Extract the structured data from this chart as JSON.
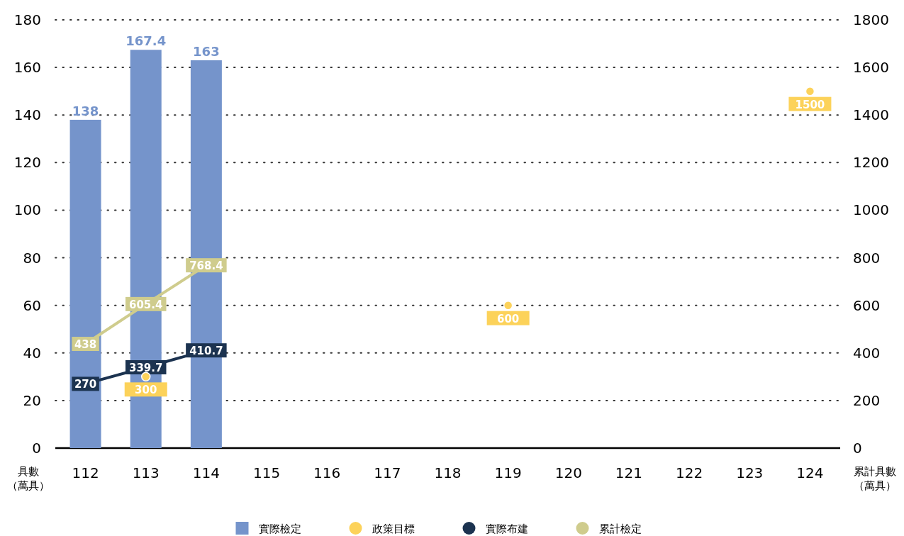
{
  "chart_data": {
    "type": "bar",
    "categories": [
      "112",
      "113",
      "114",
      "115",
      "116",
      "117",
      "118",
      "119",
      "120",
      "121",
      "122",
      "123",
      "124"
    ],
    "ylabel": "具數（萬具）",
    "y2label": "累計具數（萬具）",
    "ylim": [
      0,
      180
    ],
    "yticks": [
      0,
      20,
      40,
      60,
      80,
      100,
      120,
      140,
      160,
      180
    ],
    "y2lim": [
      0,
      1800
    ],
    "y2ticks": [
      0,
      200,
      400,
      600,
      800,
      1000,
      1200,
      1400,
      1600,
      1800
    ],
    "grid": "y",
    "legend": "bottom",
    "data_labels": true,
    "series": [
      {
        "name": "實際檢定",
        "color": "#7594cb",
        "values": [
          138,
          167.4,
          163,
          null,
          null,
          null,
          null,
          null,
          null,
          null,
          null,
          null,
          null
        ]
      },
      {
        "name": "政策目標",
        "type": "scatter",
        "axis": "y2",
        "color": "#fcd25a",
        "values": [
          null,
          300,
          null,
          null,
          null,
          null,
          null,
          600,
          null,
          null,
          null,
          null,
          1500
        ]
      },
      {
        "name": "實際布建",
        "type": "line",
        "axis": "y2",
        "color": "#1c3350",
        "values": [
          270,
          339.7,
          410.7,
          null,
          null,
          null,
          null,
          null,
          null,
          null,
          null,
          null,
          null
        ]
      },
      {
        "name": "累計檢定",
        "type": "line",
        "axis": "y2",
        "color": "#cfcc8d",
        "values": [
          438,
          605.4,
          768.4,
          null,
          null,
          null,
          null,
          null,
          null,
          null,
          null,
          null,
          null
        ]
      }
    ]
  }
}
